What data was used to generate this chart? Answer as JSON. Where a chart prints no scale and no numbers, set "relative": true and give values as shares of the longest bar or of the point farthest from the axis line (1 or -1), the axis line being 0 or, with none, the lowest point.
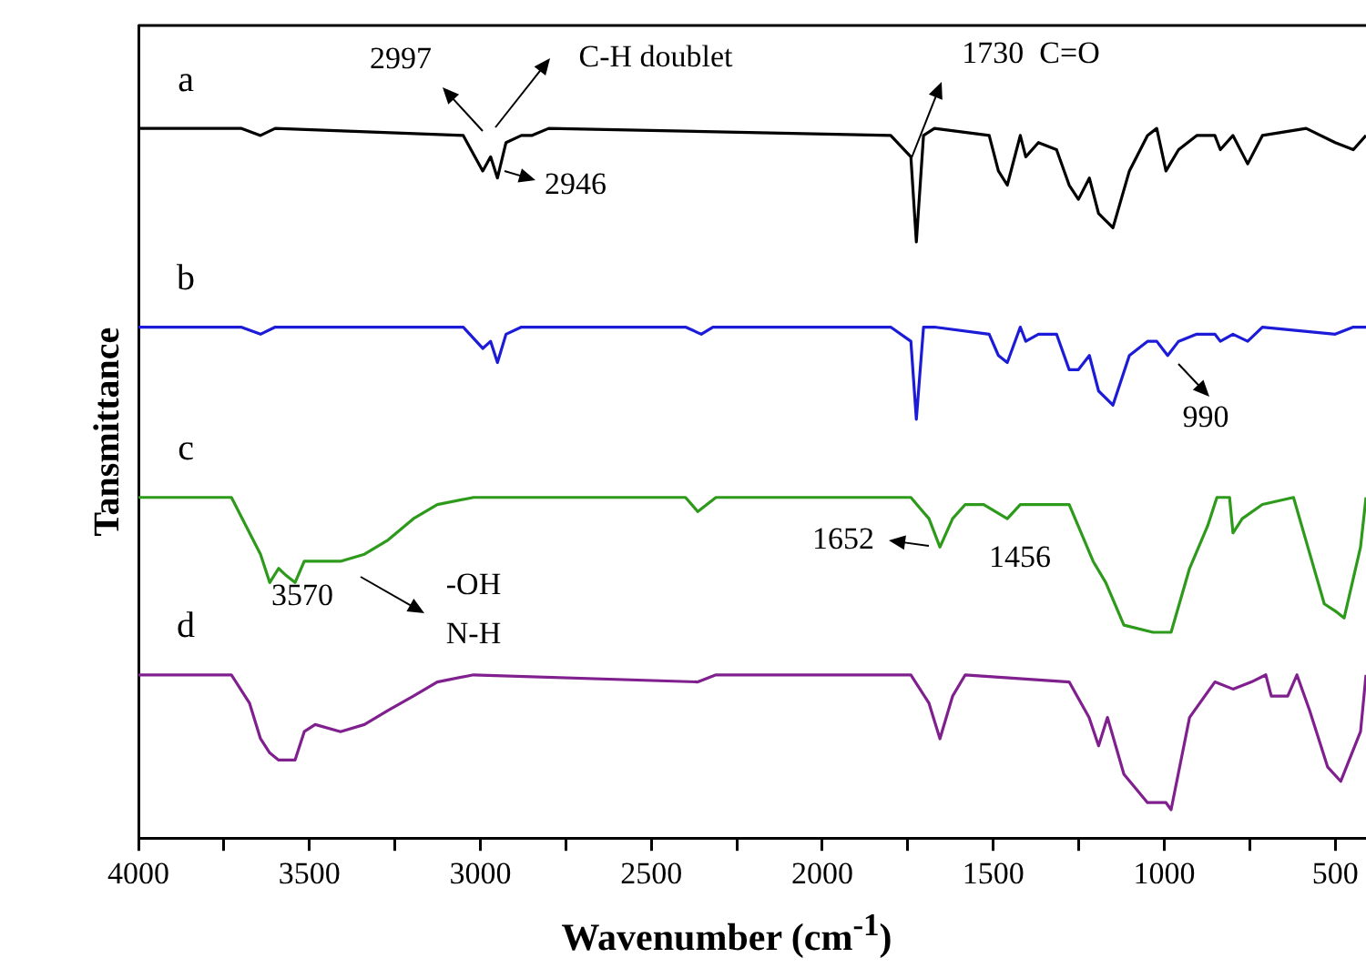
{
  "chart_data": {
    "type": "line",
    "relative": true,
    "xlabel": "Wavenumber (cm$^{-1}$)",
    "ylabel": "Tansmittance",
    "xlim": [
      4000,
      410
    ],
    "xticks": [
      4000,
      {
        "value": 3750,
        "label": null
      },
      3500,
      {
        "value": 3250,
        "label": null
      },
      3000,
      {
        "value": 2750,
        "label": null
      },
      2500,
      {
        "value": 2250,
        "label": null
      },
      2000,
      {
        "value": 1750,
        "label": null
      },
      1500,
      {
        "value": 1250,
        "label": null
      },
      1000,
      {
        "value": 750,
        "label": null
      },
      500
    ],
    "series": [
      {
        "name": "a",
        "color": "#000000",
        "x": [
          4000,
          3700,
          3643,
          3600,
          3050,
          2993,
          2970,
          2950,
          2925,
          2880,
          2850,
          2800,
          1800,
          1741,
          1725,
          1704,
          1672,
          1512,
          1485,
          1459,
          1421,
          1405,
          1368,
          1315,
          1278,
          1251,
          1219,
          1192,
          1150,
          1102,
          1049,
          1022,
          995,
          958,
          905,
          852,
          836,
          799,
          756,
          713,
          585,
          500,
          447,
          410
        ],
        "values": [
          1.0,
          1.0,
          0.99,
          1.0,
          0.99,
          0.94,
          0.96,
          0.93,
          0.98,
          0.99,
          0.99,
          1.0,
          0.99,
          0.96,
          0.84,
          0.99,
          1.0,
          0.99,
          0.94,
          0.92,
          0.99,
          0.96,
          0.98,
          0.97,
          0.92,
          0.9,
          0.93,
          0.88,
          0.86,
          0.94,
          0.99,
          1.0,
          0.94,
          0.97,
          0.99,
          0.99,
          0.97,
          0.99,
          0.95,
          0.99,
          1.0,
          0.98,
          0.97,
          0.99
        ]
      },
      {
        "name": "b",
        "color": "#1c1cd8",
        "x": [
          4000,
          3700,
          3643,
          3600,
          3050,
          2993,
          2970,
          2950,
          2925,
          2880,
          2400,
          2354,
          2320,
          1800,
          1741,
          1725,
          1704,
          1672,
          1512,
          1485,
          1459,
          1421,
          1405,
          1368,
          1315,
          1278,
          1251,
          1219,
          1192,
          1150,
          1102,
          1049,
          1022,
          990,
          958,
          905,
          852,
          836,
          799,
          756,
          713,
          500,
          447,
          410
        ],
        "values": [
          0.72,
          0.72,
          0.71,
          0.72,
          0.72,
          0.69,
          0.7,
          0.67,
          0.71,
          0.72,
          0.72,
          0.71,
          0.72,
          0.72,
          0.7,
          0.59,
          0.72,
          0.72,
          0.71,
          0.68,
          0.67,
          0.72,
          0.7,
          0.71,
          0.71,
          0.66,
          0.66,
          0.68,
          0.63,
          0.61,
          0.68,
          0.7,
          0.7,
          0.68,
          0.7,
          0.71,
          0.71,
          0.7,
          0.71,
          0.7,
          0.72,
          0.71,
          0.72,
          0.72
        ]
      },
      {
        "name": "c",
        "color": "#2e9a1c",
        "x": [
          4000,
          3728,
          3675,
          3643,
          3616,
          3590,
          3568,
          3542,
          3515,
          3483,
          3409,
          3339,
          3270,
          3196,
          3126,
          3020,
          2400,
          2364,
          2311,
          1741,
          1688,
          1656,
          1619,
          1582,
          1528,
          1459,
          1421,
          1278,
          1208,
          1171,
          1118,
          1033,
          980,
          926,
          873,
          846,
          809,
          799,
          772,
          713,
          622,
          580,
          532,
          500,
          474,
          426,
          410
        ],
        "values": [
          0.48,
          0.48,
          0.43,
          0.4,
          0.36,
          0.38,
          0.37,
          0.36,
          0.39,
          0.39,
          0.39,
          0.4,
          0.42,
          0.45,
          0.47,
          0.48,
          0.48,
          0.46,
          0.48,
          0.48,
          0.45,
          0.41,
          0.45,
          0.47,
          0.47,
          0.45,
          0.47,
          0.47,
          0.39,
          0.36,
          0.3,
          0.29,
          0.29,
          0.38,
          0.44,
          0.48,
          0.48,
          0.43,
          0.45,
          0.47,
          0.48,
          0.41,
          0.33,
          0.32,
          0.31,
          0.41,
          0.48
        ]
      },
      {
        "name": "d",
        "color": "#80208f",
        "x": [
          4000,
          3728,
          3675,
          3643,
          3616,
          3590,
          3568,
          3542,
          3515,
          3483,
          3409,
          3339,
          3270,
          3196,
          3126,
          3020,
          2364,
          2311,
          1741,
          1688,
          1656,
          1619,
          1582,
          1278,
          1220,
          1192,
          1166,
          1118,
          1049,
          995,
          980,
          926,
          852,
          799,
          745,
          703,
          687,
          639,
          612,
          575,
          522,
          484,
          426,
          410
        ],
        "values": [
          0.23,
          0.23,
          0.19,
          0.14,
          0.12,
          0.11,
          0.11,
          0.11,
          0.15,
          0.16,
          0.15,
          0.16,
          0.18,
          0.2,
          0.22,
          0.23,
          0.22,
          0.23,
          0.23,
          0.19,
          0.14,
          0.2,
          0.23,
          0.22,
          0.17,
          0.13,
          0.17,
          0.09,
          0.05,
          0.05,
          0.04,
          0.17,
          0.22,
          0.21,
          0.22,
          0.23,
          0.2,
          0.2,
          0.23,
          0.18,
          0.1,
          0.08,
          0.15,
          0.23
        ]
      }
    ],
    "annotations": [
      "2997",
      "C-H doublet",
      "2946",
      "1730  C=O",
      "990",
      "3570",
      "-OH",
      "N-H",
      "1652",
      "1456"
    ]
  }
}
